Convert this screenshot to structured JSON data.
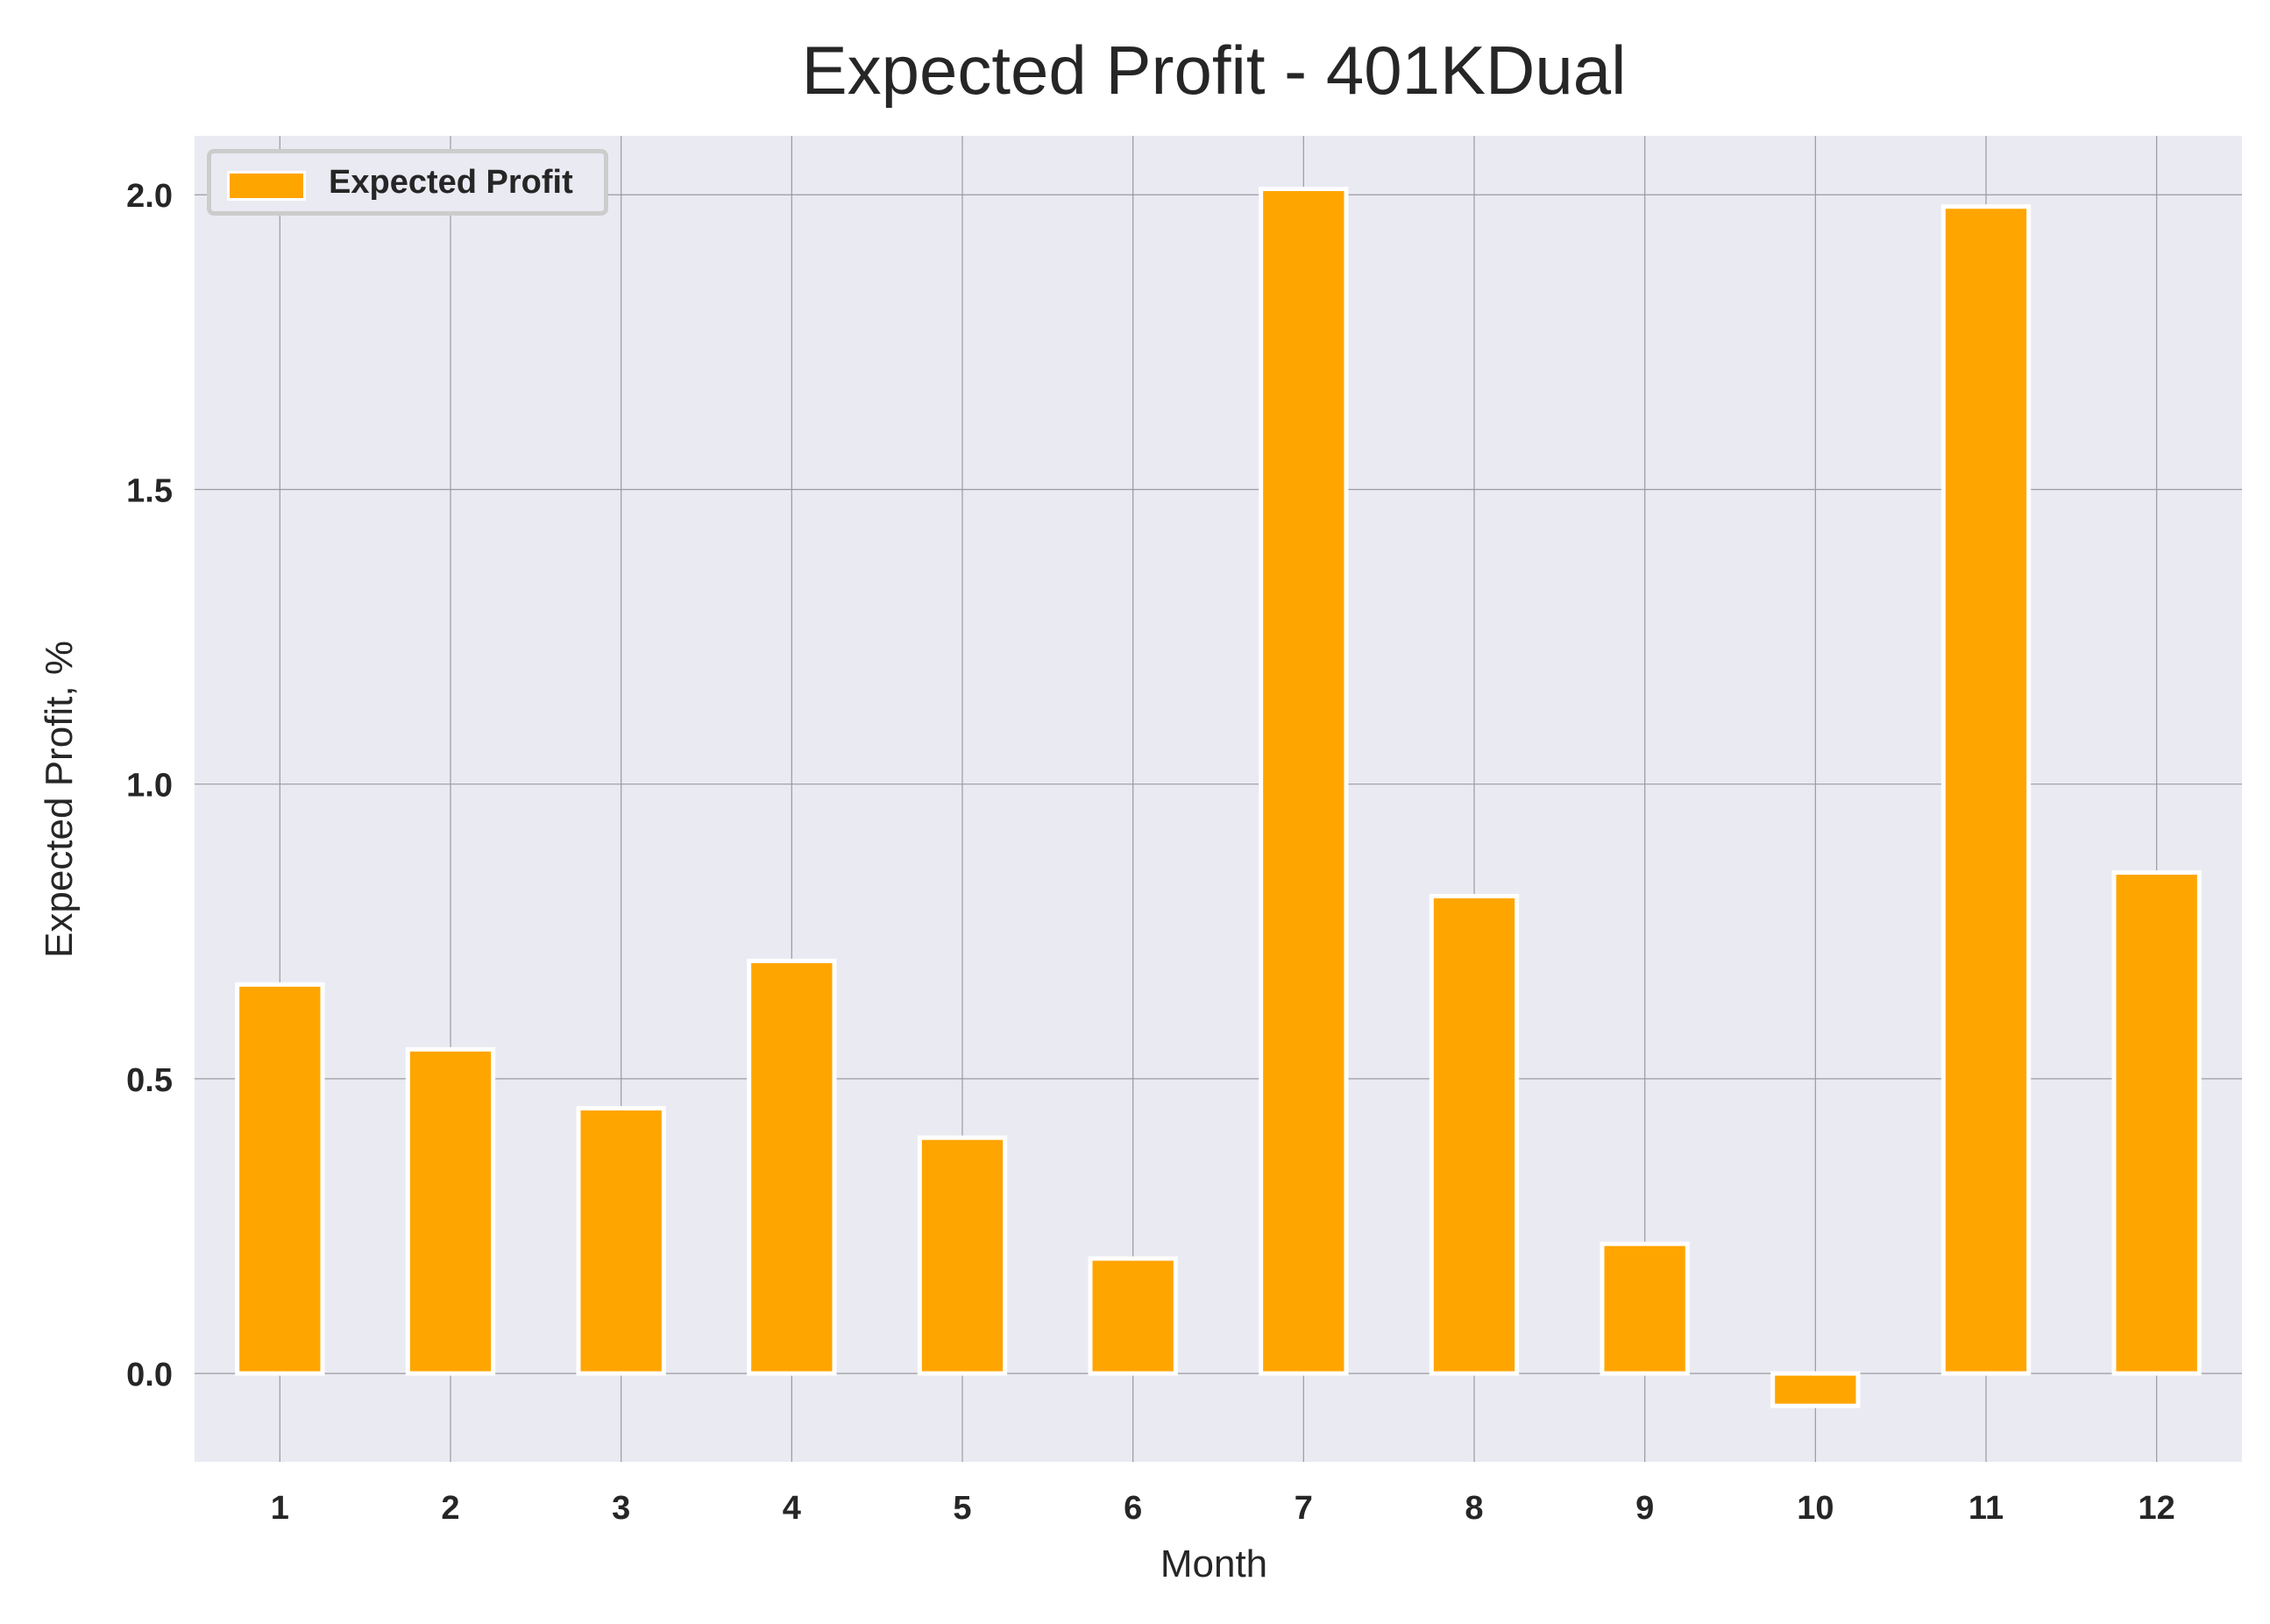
{
  "colors": {
    "bar": "#ffa500",
    "bar_edge": "#ffffff",
    "plot_background": "#eaeaf2",
    "grid": "#9a9aa0",
    "text": "#262626"
  },
  "chart_data": {
    "type": "bar",
    "title": "Expected Profit - 401KDual",
    "xlabel": "Month",
    "ylabel": "Expected Profit, %",
    "categories": [
      "1",
      "2",
      "3",
      "4",
      "5",
      "6",
      "7",
      "8",
      "9",
      "10",
      "11",
      "12"
    ],
    "series": [
      {
        "name": "Expected Profit",
        "values": [
          0.66,
          0.55,
          0.45,
          0.7,
          0.4,
          0.195,
          2.01,
          0.81,
          0.22,
          -0.055,
          1.98,
          0.85
        ]
      }
    ],
    "ylim": [
      -0.15,
      2.1
    ],
    "yticks": [
      0.0,
      0.5,
      1.0,
      1.5,
      2.0
    ],
    "ytick_labels": [
      "0.0",
      "0.5",
      "1.0",
      "1.5",
      "2.0"
    ],
    "grid": true,
    "legend_position": "top-left"
  }
}
